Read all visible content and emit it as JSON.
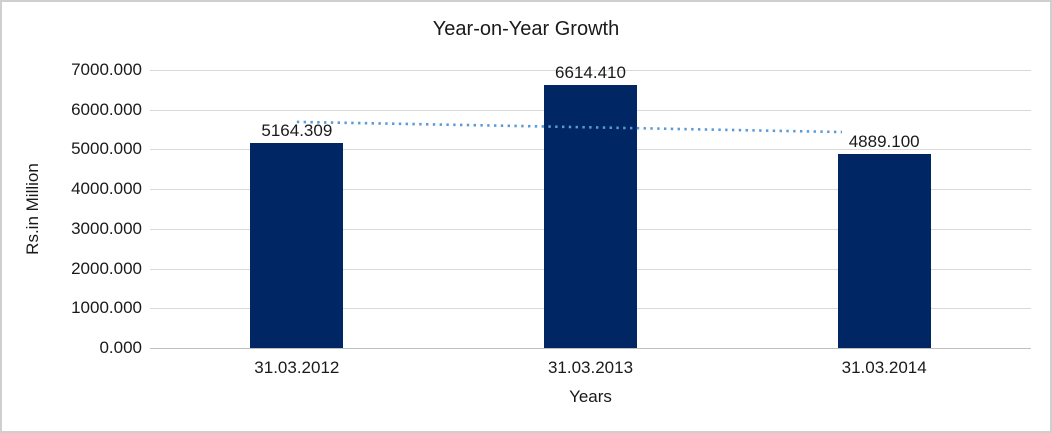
{
  "chart_data": {
    "type": "bar",
    "title": "Year-on-Year Growth",
    "categories": [
      "31.03.2012",
      "31.03.2013",
      "31.03.2014"
    ],
    "values": [
      5164.309,
      6614.41,
      4889.1
    ],
    "value_labels": [
      "5164.309",
      "6614.410",
      "4889.100"
    ],
    "xlabel": "Years",
    "ylabel": "Rs.in Million",
    "ylim": [
      0,
      7000
    ],
    "ytick_step": 1000,
    "ytick_labels": [
      "0.000",
      "1000.000",
      "2000.000",
      "3000.000",
      "4000.000",
      "5000.000",
      "6000.000",
      "7000.000"
    ],
    "grid": true,
    "legend_position": "none",
    "trendline": {
      "type": "linear",
      "style": "dotted",
      "visible": true
    },
    "colors": {
      "bar": "#002664",
      "trendline": "#5B9BD5",
      "gridline": "#D9D9D9",
      "axis_line": "#BFBFBF",
      "text": "#1a1a1a",
      "frame_border": "#CFCFCF",
      "background": "#FFFFFF"
    }
  }
}
